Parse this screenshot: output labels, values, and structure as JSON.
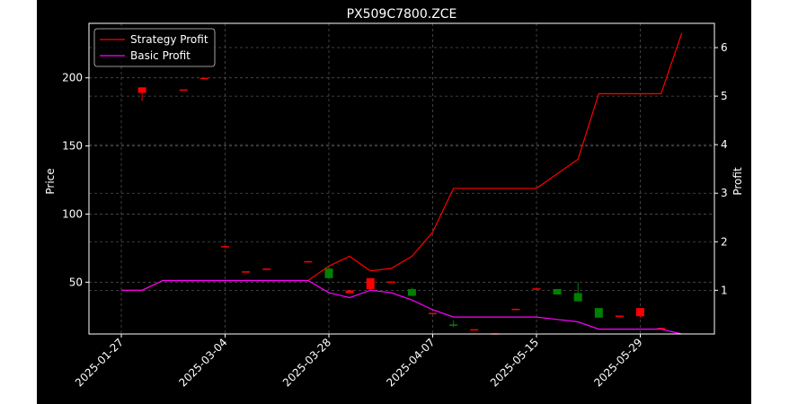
{
  "chart_data": {
    "type": "candlestick+line",
    "title": "PX509C7800.ZCE",
    "xlabel": "",
    "ylabel": "Price",
    "y2label": "Profit",
    "ylim": [
      12,
      240
    ],
    "y2lim": [
      0.1,
      6.5
    ],
    "yticks": [
      50,
      100,
      150,
      200
    ],
    "y2ticks": [
      1,
      2,
      3,
      4,
      5,
      6
    ],
    "xticks": [
      {
        "index": 0,
        "label": "2025-01-27"
      },
      {
        "index": 5,
        "label": "2025-03-04"
      },
      {
        "index": 10,
        "label": "2025-03-28"
      },
      {
        "index": 15,
        "label": "2025-04-07"
      },
      {
        "index": 20,
        "label": "2025-05-15"
      },
      {
        "index": 25,
        "label": "2025-05-29"
      }
    ],
    "grid": true,
    "legend_position": "top-left",
    "candles": [
      {
        "i": 1,
        "open": 193,
        "high": 193,
        "low": 183,
        "close": 189
      },
      {
        "i": 3,
        "open": 191.5,
        "high": 191.5,
        "low": 191,
        "close": 191
      },
      {
        "i": 4,
        "open": 200,
        "high": 200,
        "low": 199.5,
        "close": 199.5
      },
      {
        "i": 5,
        "open": 76.5,
        "high": 76.5,
        "low": 76,
        "close": 76
      },
      {
        "i": 6,
        "open": 58,
        "high": 58,
        "low": 57.5,
        "close": 57.5
      },
      {
        "i": 7,
        "open": 60,
        "high": 60,
        "low": 59.5,
        "close": 59.5
      },
      {
        "i": 9,
        "open": 65.5,
        "high": 65.5,
        "low": 65,
        "close": 65
      },
      {
        "i": 10,
        "open": 53,
        "high": 62,
        "low": 53,
        "close": 60
      },
      {
        "i": 11,
        "open": 44,
        "high": 44,
        "low": 42,
        "close": 42
      },
      {
        "i": 12,
        "open": 53,
        "high": 53,
        "low": 44,
        "close": 45
      },
      {
        "i": 13,
        "open": 50.5,
        "high": 50.5,
        "low": 50,
        "close": 50
      },
      {
        "i": 14,
        "open": 40,
        "high": 46,
        "low": 40,
        "close": 45
      },
      {
        "i": 15,
        "open": 27.5,
        "high": 27.5,
        "low": 27,
        "close": 27
      },
      {
        "i": 16,
        "open": 18,
        "high": 22,
        "low": 17,
        "close": 19
      },
      {
        "i": 17,
        "open": 15.5,
        "high": 15.5,
        "low": 15,
        "close": 15
      },
      {
        "i": 18,
        "open": 12.5,
        "high": 12.5,
        "low": 12,
        "close": 12
      },
      {
        "i": 19,
        "open": 30.5,
        "high": 30.5,
        "low": 30,
        "close": 30
      },
      {
        "i": 20,
        "open": 45.5,
        "high": 45.5,
        "low": 45,
        "close": 45
      },
      {
        "i": 21,
        "open": 41,
        "high": 45,
        "low": 41,
        "close": 45
      },
      {
        "i": 22,
        "open": 36,
        "high": 50,
        "low": 36,
        "close": 42
      },
      {
        "i": 23,
        "open": 24,
        "high": 31,
        "low": 24,
        "close": 31
      },
      {
        "i": 24,
        "open": 25.5,
        "high": 25.5,
        "low": 25,
        "close": 25
      },
      {
        "i": 25,
        "open": 31,
        "high": 31,
        "low": 24,
        "close": 25
      },
      {
        "i": 26,
        "open": 16.5,
        "high": 16.5,
        "low": 16,
        "close": 16
      }
    ],
    "series": [
      {
        "name": "Strategy Profit",
        "axis": "right",
        "color": "#ff0000",
        "points": [
          [
            0,
            1.0
          ],
          [
            1,
            1.0
          ],
          [
            2,
            1.2
          ],
          [
            3,
            1.2
          ],
          [
            4,
            1.2
          ],
          [
            5,
            1.2
          ],
          [
            6,
            1.2
          ],
          [
            7,
            1.2
          ],
          [
            8,
            1.2
          ],
          [
            9,
            1.2
          ],
          [
            10,
            1.5
          ],
          [
            11,
            1.7
          ],
          [
            12,
            1.4
          ],
          [
            13,
            1.45
          ],
          [
            14,
            1.7
          ],
          [
            15,
            2.2
          ],
          [
            16,
            3.1
          ],
          [
            17,
            3.1
          ],
          [
            18,
            3.1
          ],
          [
            19,
            3.1
          ],
          [
            20,
            3.1
          ],
          [
            21,
            3.4
          ],
          [
            22,
            3.7
          ],
          [
            23,
            5.05
          ],
          [
            24,
            5.05
          ],
          [
            25,
            5.05
          ],
          [
            26,
            5.05
          ],
          [
            27,
            6.3
          ]
        ]
      },
      {
        "name": "Basic Profit",
        "axis": "right",
        "color": "#ff00ff",
        "points": [
          [
            0,
            1.0
          ],
          [
            1,
            1.0
          ],
          [
            2,
            1.2
          ],
          [
            3,
            1.2
          ],
          [
            4,
            1.2
          ],
          [
            5,
            1.2
          ],
          [
            6,
            1.2
          ],
          [
            7,
            1.2
          ],
          [
            8,
            1.2
          ],
          [
            9,
            1.2
          ],
          [
            10,
            0.95
          ],
          [
            11,
            0.85
          ],
          [
            12,
            1.0
          ],
          [
            13,
            0.95
          ],
          [
            14,
            0.8
          ],
          [
            15,
            0.6
          ],
          [
            16,
            0.45
          ],
          [
            17,
            0.45
          ],
          [
            18,
            0.45
          ],
          [
            19,
            0.45
          ],
          [
            20,
            0.45
          ],
          [
            21,
            0.4
          ],
          [
            22,
            0.35
          ],
          [
            23,
            0.2
          ],
          [
            24,
            0.2
          ],
          [
            25,
            0.2
          ],
          [
            26,
            0.2
          ],
          [
            27,
            0.1
          ]
        ]
      }
    ],
    "candle_colors": {
      "up": "#008000",
      "down": "#ff0000"
    }
  }
}
